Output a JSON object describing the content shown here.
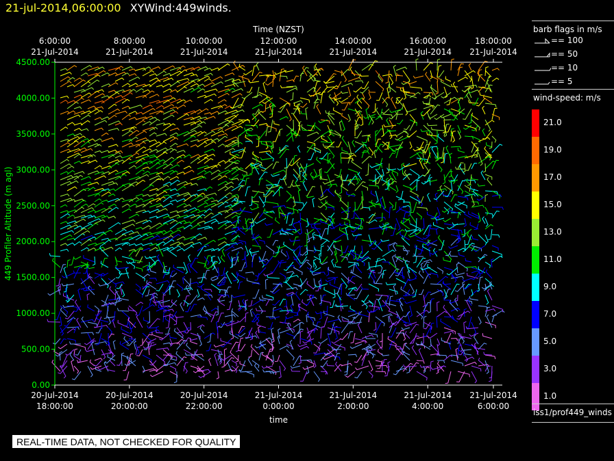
{
  "header": {
    "date": "21-jul-2014,06:00:00",
    "name": "XYWind:449winds."
  },
  "legend": {
    "barb_title": "barb flags in m/s",
    "barb_flags": [
      "== 100",
      "== 50",
      "== 10",
      "== 5"
    ],
    "speed_title": "wind-speed: m/s",
    "source": "iss1/prof449_winds"
  },
  "footer": {
    "quality_note": "REAL-TIME DATA, NOT CHECKED FOR QUALITY"
  },
  "colors": {
    "background": "#000000",
    "axis": "#00ff00",
    "title_date": "#ffff33"
  },
  "chart_data": {
    "type": "wind-barb time-height plot",
    "top_axis_title": "Time (NZST)",
    "top_ticks": [
      [
        "6:00:00",
        "21-Jul-2014"
      ],
      [
        "8:00:00",
        "21-Jul-2014"
      ],
      [
        "10:00:00",
        "21-Jul-2014"
      ],
      [
        "12:00:00",
        "21-Jul-2014"
      ],
      [
        "14:00:00",
        "21-Jul-2014"
      ],
      [
        "16:00:00",
        "21-Jul-2014"
      ],
      [
        "18:00:00",
        "21-Jul-2014"
      ]
    ],
    "bottom_axis_title": "time",
    "bottom_ticks": [
      [
        "20-Jul-2014",
        "18:00:00"
      ],
      [
        "20-Jul-2014",
        "20:00:00"
      ],
      [
        "20-Jul-2014",
        "22:00:00"
      ],
      [
        "21-Jul-2014",
        "0:00:00"
      ],
      [
        "21-Jul-2014",
        "2:00:00"
      ],
      [
        "21-Jul-2014",
        "4:00:00"
      ],
      [
        "21-Jul-2014",
        "6:00:00"
      ]
    ],
    "ylabel": "449 Profiler Altitude (m agl)",
    "ylim": [
      0,
      4500
    ],
    "y_ticks": [
      "0.00",
      "500.00",
      "1000.00",
      "1500.00",
      "2000.00",
      "2500.00",
      "3000.00",
      "3500.00",
      "4000.00",
      "4500.00"
    ],
    "colorbar": {
      "labels": [
        "21.0",
        "19.0",
        "17.0",
        "15.0",
        "13.0",
        "11.0",
        "9.0",
        "7.0",
        "5.0",
        "3.0",
        "1.0"
      ],
      "colors": [
        "#ff0000",
        "#ff6a00",
        "#ff9900",
        "#ffff00",
        "#99ee33",
        "#00ee00",
        "#00ffff",
        "#0000ff",
        "#6699ff",
        "#9933ff",
        "#ee66ee"
      ]
    }
  }
}
